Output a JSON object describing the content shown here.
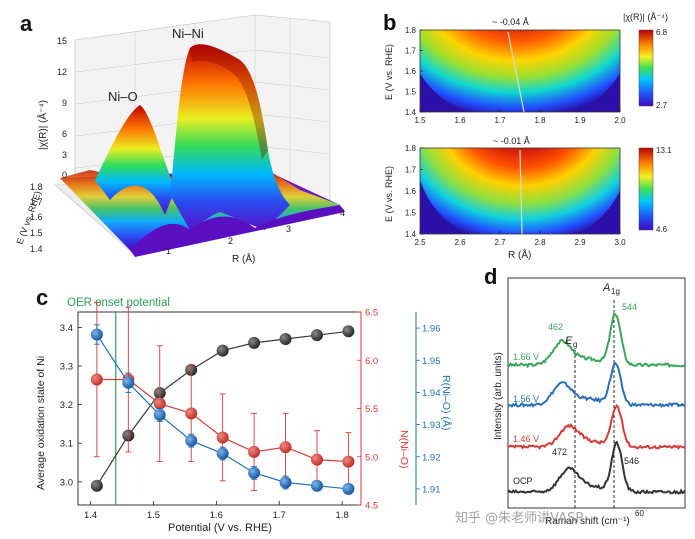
{
  "panels": {
    "a": {
      "letter": "a"
    },
    "b": {
      "letter": "b"
    },
    "c": {
      "letter": "c"
    },
    "d": {
      "letter": "d"
    }
  },
  "colors": {
    "black_series": "#3a3a3a",
    "red_series": "#d63b34",
    "blue_series": "#1f6fb8",
    "onset": "#2ba05a",
    "green_curve": "#3aa55a",
    "blue_curve": "#2a6fb8",
    "red_curve": "#d43c3c",
    "black_curve": "#333333"
  },
  "watermark": {
    "text": "知乎 @朱老师讲VASP"
  },
  "chart_data": [
    {
      "id": "a",
      "type": "surface3d",
      "zlabel": "|χ(R)| (Å⁻⁴)",
      "ylabel": "E (V vs. RHE)",
      "xlabel": "R (Å)",
      "z_ticks": [
        "0",
        "3",
        "6",
        "9",
        "12",
        "15"
      ],
      "y_ticks": [
        "1.8",
        "1.7",
        "1.6",
        "1.5",
        "1.4"
      ],
      "x_ticks": [
        "1",
        "2",
        "3",
        "4"
      ],
      "peaks": [
        {
          "label": "Ni–O",
          "r": 1.55,
          "height": 7.8
        },
        {
          "label": "Ni–Ni",
          "r": 2.6,
          "height": 13.8
        }
      ]
    },
    {
      "id": "b-top",
      "type": "heatmap",
      "ylabel": "E (V vs. RHE)",
      "xlabel": "",
      "x_ticks": [
        "1.5",
        "1.6",
        "1.7",
        "1.8",
        "1.9",
        "2.0"
      ],
      "xlim": [
        1.5,
        2.0
      ],
      "y_ticks": [
        "1.8",
        "1.7",
        "1.6",
        "1.5",
        "1.4"
      ],
      "ylim": [
        1.4,
        1.8
      ],
      "annotation": "~ -0.04 Å",
      "colorbar": {
        "title": "|χ(R)| (Å⁻⁴)",
        "max": "6.8",
        "min": "2.7"
      },
      "peak_line": {
        "start_r": 1.76,
        "end_r": 1.72
      }
    },
    {
      "id": "b-bottom",
      "type": "heatmap",
      "ylabel": "E (V vs. RHE)",
      "xlabel": "R (Å)",
      "x_ticks": [
        "2.5",
        "2.6",
        "2.7",
        "2.8",
        "2.9",
        "3.0"
      ],
      "xlim": [
        2.5,
        3.0
      ],
      "y_ticks": [
        "1.8",
        "1.7",
        "1.6",
        "1.5",
        "1.4"
      ],
      "ylim": [
        1.4,
        1.8
      ],
      "annotation": "~ -0.01 Å",
      "colorbar": {
        "max": "13.1",
        "min": "4.6"
      },
      "peak_line": {
        "start_r": 2.755,
        "end_r": 2.75
      }
    },
    {
      "id": "c",
      "type": "line",
      "title_annotation": "OER onset potential",
      "onset_x": 1.44,
      "xlabel": "Potential (V vs. RHE)",
      "xlim": [
        1.38,
        1.83
      ],
      "x_ticks": [
        "1.4",
        "1.5",
        "1.6",
        "1.7",
        "1.8"
      ],
      "ylabel_left": "Average oxidation state of Ni",
      "ylim_left": [
        2.94,
        3.44
      ],
      "y_ticks_left": [
        "3.0",
        "3.1",
        "3.2",
        "3.3",
        "3.4"
      ],
      "ylabel_red": "N(Ni–O)",
      "ylim_red": [
        4.5,
        6.5
      ],
      "y_ticks_red": [
        "4.5",
        "5.0",
        "5.5",
        "6.0",
        "6.5"
      ],
      "ylabel_blue": "R(Ni–O) (Å)",
      "ylim_blue": [
        1.905,
        1.965
      ],
      "y_ticks_blue": [
        "1.91",
        "1.92",
        "1.93",
        "1.94",
        "1.95",
        "1.96"
      ],
      "x": [
        1.41,
        1.46,
        1.51,
        1.56,
        1.61,
        1.66,
        1.71,
        1.76,
        1.81
      ],
      "series": [
        {
          "name": "Average oxidation state",
          "axis": "left",
          "values": [
            2.99,
            3.12,
            3.23,
            3.29,
            3.34,
            3.36,
            3.37,
            3.38,
            3.39
          ]
        },
        {
          "name": "N(Ni–O)",
          "axis": "red",
          "values": [
            5.8,
            5.8,
            5.55,
            5.45,
            5.2,
            5.05,
            5.1,
            4.97,
            4.95
          ],
          "errors": [
            0.8,
            0.75,
            0.6,
            0.5,
            0.45,
            0.4,
            0.35,
            0.3,
            0.3
          ]
        },
        {
          "name": "R(Ni–O)",
          "axis": "blue",
          "values": [
            1.958,
            1.943,
            1.933,
            1.925,
            1.921,
            1.915,
            1.912,
            1.911,
            1.91
          ],
          "errors": [
            0.003,
            0.003,
            0.002,
            0.002,
            0.002,
            0.002,
            0.002,
            0.001,
            0.001
          ]
        }
      ]
    },
    {
      "id": "d",
      "type": "line",
      "xlabel": "Raman shift (cm⁻¹)",
      "ylabel": "Intensity (arb. units)",
      "xlim": [
        380,
        650
      ],
      "series": [
        {
          "name": "1.66 V",
          "peaks": [
            462,
            544
          ]
        },
        {
          "name": "1.56 V",
          "peaks": [
            462,
            544
          ]
        },
        {
          "name": "1.46 V",
          "peaks": [
            472,
            546
          ]
        },
        {
          "name": "OCP",
          "peaks": [
            472,
            546
          ]
        }
      ],
      "labels": {
        "eg": "E",
        "eg_sub": "g",
        "a1g": "A",
        "a1g_sub": "1g",
        "p462": "462",
        "p544": "544",
        "p472": "472",
        "p546": "546",
        "tick_partial": "60"
      }
    }
  ]
}
